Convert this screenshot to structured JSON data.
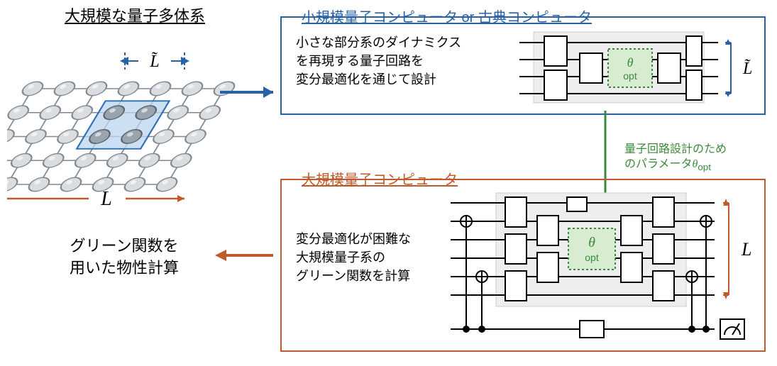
{
  "left": {
    "title": "大規模な量子多体系",
    "L_label": "L",
    "Ltilde_label": "L̃",
    "lattice": {
      "rows": 5,
      "cols": 7,
      "node_radius": 13,
      "node_fill": "#d9dde0",
      "node_stroke": "#808892",
      "highlight_fill": "#9aa4ae",
      "highlight_stroke": "#5a646e",
      "region_fill": "#bcd6ef",
      "region_stroke": "#2e6fb5",
      "arrow_color": "#c05a2c",
      "tilde_color": "#2862a6"
    },
    "result": "グリーン関数を\n用いた物性計算"
  },
  "top_box": {
    "label": "小規模量子コンピュータ or 古典コンピュータ",
    "label_color": "#2862a6",
    "border_color": "#2862a6",
    "text": "小さな部分系のダイナミクス\nを再現する量子回路を\n変分最適化を通じて設計",
    "circuit": {
      "wires": 4,
      "gate_fill": "#ffffff",
      "gate_stroke": "#000000",
      "bg_fill": "#eeeeee",
      "theta_fill": "#d7ecd0",
      "theta_stroke": "#3b8a3b",
      "theta_label": "θ_opt",
      "Ltilde_color": "#2862a6"
    }
  },
  "transfer_note": "量子回路設計のため\nのパラメータθ_opt",
  "transfer_arrow_color": "#3b8a3b",
  "bottom_box": {
    "label": "大規模量子コンピュータ",
    "label_color": "#c05a2c",
    "border_color": "#c05a2c",
    "text": "変分最適化が困難な\n大規模量子系の\nグリーン関数を計算",
    "circuit": {
      "wires": 7,
      "gate_fill": "#ffffff",
      "gate_stroke": "#000000",
      "bg_fill": "#eeeeee",
      "theta_fill": "#d7ecd0",
      "theta_stroke": "#3b8a3b",
      "theta_label": "θ_opt",
      "L_color": "#c05a2c"
    }
  },
  "arrows": {
    "lattice_to_top": "#2862a6",
    "bottom_to_result": "#c05a2c"
  }
}
